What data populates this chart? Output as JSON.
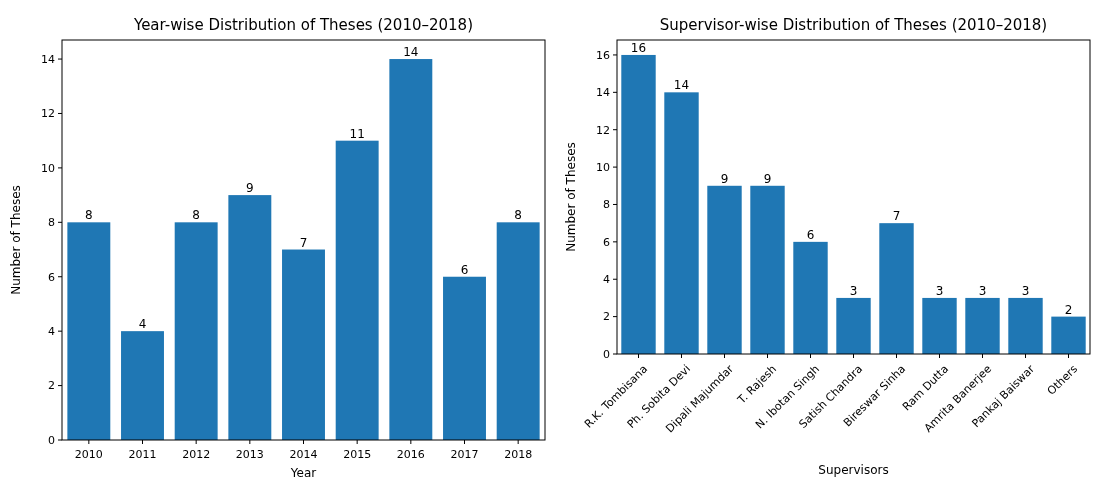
{
  "chart_data": [
    {
      "type": "bar",
      "title": "Year-wise Distribution of Theses (2010–2018)",
      "xlabel": "Year",
      "ylabel": "Number of Theses",
      "categories": [
        "2010",
        "2011",
        "2012",
        "2013",
        "2014",
        "2015",
        "2016",
        "2017",
        "2018"
      ],
      "values": [
        8,
        4,
        8,
        9,
        7,
        11,
        14,
        6,
        8
      ],
      "color": "#1f77b4",
      "ylim": [
        0,
        14.7
      ],
      "yticks": [
        0,
        2,
        4,
        6,
        8,
        10,
        12,
        14
      ],
      "data_labels": true
    },
    {
      "type": "bar",
      "title": "Supervisor-wise Distribution of Theses (2010–2018)",
      "xlabel": "Supervisors",
      "ylabel": "Number of Theses",
      "categories": [
        "R.K. Tombisana",
        "Ph. Sobita Devi",
        "Dipali Majumdar",
        "T. Rajesh",
        "N. Ibotan Singh",
        "Satish Chandra",
        "Bireswar Sinha",
        "Ram Dutta",
        "Amrita Banerjee",
        "Pankaj Baiswar",
        "Others"
      ],
      "values": [
        16,
        14,
        9,
        9,
        6,
        3,
        7,
        3,
        3,
        3,
        2
      ],
      "color": "#1f77b4",
      "ylim": [
        0,
        16.8
      ],
      "yticks": [
        0,
        2,
        4,
        6,
        8,
        10,
        12,
        14,
        16
      ],
      "data_labels": true
    }
  ]
}
